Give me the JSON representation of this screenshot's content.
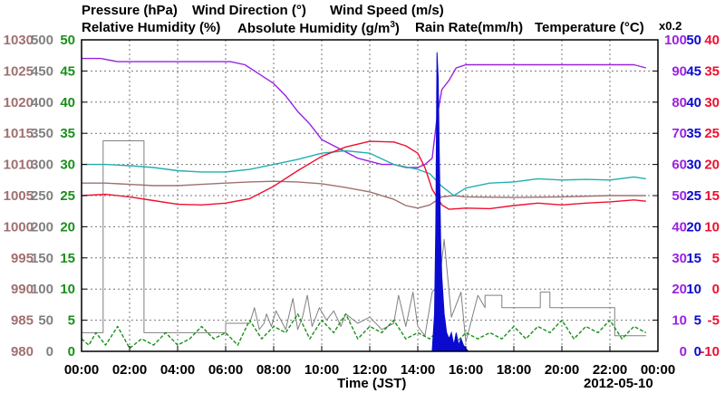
{
  "titles": {
    "pressure": "Pressure (hPa)",
    "wind_direction": "Wind Direction (°)",
    "wind_speed": "Wind Speed (m/s)",
    "relative_humidity": "Relative Humidity (%)",
    "absolute_humidity_base": "Absolute Humidity (g/m",
    "absolute_humidity_sup": "3",
    "absolute_humidity_close": ")",
    "rain_rate": "Rain Rate(mm/h)",
    "temperature": "Temperature (°C)",
    "rain_multiplier": "x0.2"
  },
  "xlabel": "Time (JST)",
  "date": "2012-05-10",
  "colors": {
    "pressure": "#a07070",
    "wind_direction": "#808080",
    "wind_speed": "#1a8f1a",
    "relative_humidity": "#9a22e0",
    "absolute_humidity": "#22b0b0",
    "rain_rate": "#0a0ad0",
    "temperature": "#ee1030",
    "grid": "#777777",
    "frame": "#000000"
  },
  "chart_data": {
    "type": "line",
    "xlabel": "Time (JST)",
    "x_ticks": [
      "00:00",
      "02:00",
      "04:00",
      "06:00",
      "08:00",
      "10:00",
      "12:00",
      "14:00",
      "16:00",
      "18:00",
      "20:00",
      "22:00",
      "00:00"
    ],
    "xlim_hours": [
      0,
      24
    ],
    "grid": true,
    "left_axes": [
      {
        "name": "Pressure (hPa)",
        "color": "#a07070",
        "ticks": [
          "980",
          "985",
          "990",
          "995",
          "1000",
          "1005",
          "1010",
          "1015",
          "1020",
          "1025",
          "1030"
        ],
        "ylim": [
          980,
          1030
        ]
      },
      {
        "name": "Wind Direction (°)",
        "color": "#808080",
        "ticks": [
          "0",
          "50",
          "100",
          "150",
          "200",
          "250",
          "300",
          "350",
          "400",
          "450",
          "500"
        ],
        "ylim": [
          0,
          500
        ]
      },
      {
        "name": "Wind Speed (m/s)",
        "color": "#1a8f1a",
        "ticks": [
          "0",
          "5",
          "10",
          "15",
          "20",
          "25",
          "30",
          "35",
          "40",
          "45",
          "50"
        ],
        "ylim": [
          0,
          50
        ]
      }
    ],
    "right_axes": [
      {
        "name": "Relative Humidity (%)",
        "color": "#9a22e0",
        "ticks": [
          "0",
          "10",
          "20",
          "30",
          "40",
          "50",
          "60",
          "70",
          "80",
          "90",
          "100"
        ],
        "ylim": [
          0,
          100
        ]
      },
      {
        "name": "Rain Rate(mm/h) x0.2",
        "color": "#0a0ad0",
        "ticks": [
          "0",
          "5",
          "10",
          "15",
          "20",
          "25",
          "30",
          "35",
          "40",
          "45",
          "50"
        ],
        "ylim": [
          0,
          50
        ]
      },
      {
        "name": "Temperature (°C)",
        "color": "#ee1030",
        "ticks": [
          "-10",
          "-5",
          "0",
          "5",
          "10",
          "15",
          "20",
          "25",
          "30",
          "35",
          "40"
        ],
        "ylim": [
          -10,
          40
        ]
      }
    ],
    "series": [
      {
        "name": "Pressure (hPa)",
        "axis": "Pressure (hPa)",
        "style": "solid",
        "x": [
          0,
          1,
          2,
          3,
          4,
          5,
          6,
          7,
          8,
          9,
          10,
          11,
          12,
          13,
          13.5,
          14,
          14.5,
          15,
          15.5,
          16,
          18,
          20,
          22,
          23.5
        ],
        "y": [
          1007.0,
          1007.0,
          1006.8,
          1006.6,
          1006.6,
          1006.8,
          1007.0,
          1007.2,
          1007.3,
          1007.2,
          1006.9,
          1006.3,
          1005.6,
          1004.4,
          1003.4,
          1003.0,
          1003.5,
          1004.8,
          1005.0,
          1004.8,
          1004.7,
          1004.8,
          1005.0,
          1005.0
        ]
      },
      {
        "name": "Relative Humidity (%)",
        "axis": "Relative Humidity (%)",
        "style": "solid",
        "x": [
          0,
          0.8,
          1.5,
          3,
          4.5,
          6.2,
          6.8,
          7.4,
          8,
          8.5,
          9,
          9.5,
          10,
          10.5,
          11,
          11.5,
          12,
          12.5,
          13,
          13.5,
          14,
          14.3,
          14.6,
          14.8,
          15,
          15.3,
          15.6,
          16,
          17,
          18,
          19,
          20,
          21,
          22,
          23,
          23.5
        ],
        "y": [
          94,
          94,
          93,
          93,
          93,
          93,
          92,
          89,
          86,
          82,
          77,
          73,
          68,
          66,
          64,
          62,
          61,
          60,
          60,
          59,
          59,
          60,
          62,
          75,
          84,
          87,
          91,
          92,
          92,
          92,
          92,
          92,
          92,
          92,
          92,
          91
        ]
      },
      {
        "name": "Absolute Humidity (g/m3)",
        "axis": "Wind Direction (°)",
        "style": "solid",
        "x": [
          0,
          1,
          2,
          3,
          4,
          5,
          6,
          7,
          8,
          9,
          10,
          11,
          12,
          13,
          14,
          14.5,
          15,
          15.5,
          16,
          17,
          18,
          19,
          20,
          21,
          22,
          23,
          23.5
        ],
        "y": [
          300,
          300,
          298,
          295,
          290,
          288,
          288,
          292,
          300,
          308,
          318,
          322,
          318,
          300,
          292,
          285,
          265,
          250,
          262,
          270,
          272,
          277,
          275,
          276,
          275,
          280,
          277
        ]
      },
      {
        "name": "Temperature (°C)",
        "axis": "Temperature (°C)",
        "style": "solid",
        "x": [
          0,
          1,
          2,
          3,
          4,
          5,
          6,
          7,
          8,
          9,
          10,
          11,
          12,
          13,
          13.5,
          14,
          14.3,
          14.6,
          15,
          15.3,
          16,
          17,
          18,
          19,
          20,
          21,
          22,
          23,
          23.5
        ],
        "y": [
          15.0,
          15.2,
          14.8,
          14.2,
          13.6,
          13.5,
          13.8,
          14.5,
          16.5,
          19.0,
          21.3,
          22.8,
          23.7,
          23.6,
          23.0,
          21.8,
          19.5,
          16.0,
          13.5,
          12.8,
          13.0,
          12.9,
          13.4,
          13.8,
          13.5,
          13.8,
          14.0,
          14.3,
          14.1
        ]
      },
      {
        "name": "Wind Direction (°)",
        "axis": "Wind Direction (°)",
        "style": "thin",
        "x": [
          0,
          0.9,
          0.9,
          2.6,
          2.6,
          5,
          5,
          6,
          6,
          7,
          7,
          7.2,
          7.4,
          7.6,
          7.7,
          7.9,
          8.1,
          8.5,
          8.8,
          9,
          9.2,
          9.4,
          9.6,
          9.9,
          10.2,
          10.5,
          10.8,
          11.0,
          11.5,
          12,
          12.5,
          13,
          13.2,
          13.5,
          13.8,
          14,
          14.3,
          14.6,
          14.9,
          15.1,
          15.4,
          15.8,
          16,
          16.5,
          16.8,
          16.8,
          17.5,
          17.5,
          18,
          18,
          19.1,
          19.1,
          19.5,
          19.5,
          20,
          20,
          21,
          21,
          22.2,
          22.2,
          23.5
        ],
        "y": [
          30,
          30,
          338,
          338,
          30,
          30,
          30,
          30,
          45,
          45,
          45,
          70,
          35,
          45,
          60,
          40,
          65,
          35,
          85,
          35,
          55,
          90,
          40,
          70,
          50,
          65,
          40,
          60,
          45,
          55,
          35,
          45,
          90,
          40,
          95,
          40,
          25,
          95,
          110,
          180,
          55,
          95,
          15,
          90,
          70,
          90,
          90,
          70,
          70,
          70,
          70,
          95,
          95,
          70,
          70,
          70,
          70,
          70,
          70,
          25,
          25
        ]
      },
      {
        "name": "Wind Speed (m/s)",
        "axis": "Wind Speed (m/s)",
        "style": "dashed",
        "x": [
          0,
          0.3,
          0.6,
          1,
          1.5,
          2,
          2.5,
          3,
          3.5,
          4,
          4.5,
          5,
          5.5,
          6,
          6.5,
          7,
          7.5,
          8,
          8.5,
          9,
          9.5,
          10,
          10.5,
          11,
          11.5,
          12,
          12.5,
          13,
          13.5,
          14,
          14.5,
          15,
          15.5,
          16,
          16.5,
          17,
          17.5,
          18,
          18.5,
          19,
          19.5,
          20,
          20.5,
          21,
          21.5,
          22,
          22.5,
          23,
          23.5
        ],
        "y": [
          2,
          1,
          3,
          1,
          4,
          0.5,
          2,
          1,
          3,
          1,
          2,
          4,
          2,
          3,
          1,
          5,
          2,
          4,
          3,
          6,
          2,
          5,
          3,
          6,
          2,
          4,
          3,
          5,
          2,
          3,
          2,
          4,
          1,
          3,
          2,
          3,
          2,
          4,
          2,
          4,
          3,
          5,
          2,
          4,
          3,
          5,
          2,
          4,
          3
        ]
      },
      {
        "name": "Rain Rate(mm/h)",
        "axis": "Rain Rate(mm/h) x0.2",
        "style": "filled",
        "x": [
          14.6,
          14.7,
          14.75,
          14.8,
          14.85,
          14.9,
          14.95,
          15.0,
          15.05,
          15.1,
          15.2,
          15.3,
          15.4,
          15.5,
          15.6,
          15.7,
          15.8,
          15.9,
          16.0,
          16.1
        ],
        "y": [
          0,
          6,
          20,
          48,
          44,
          30,
          18,
          12,
          9,
          6,
          3,
          2,
          3,
          1,
          3,
          1,
          2,
          1,
          0.5,
          0
        ]
      }
    ]
  }
}
